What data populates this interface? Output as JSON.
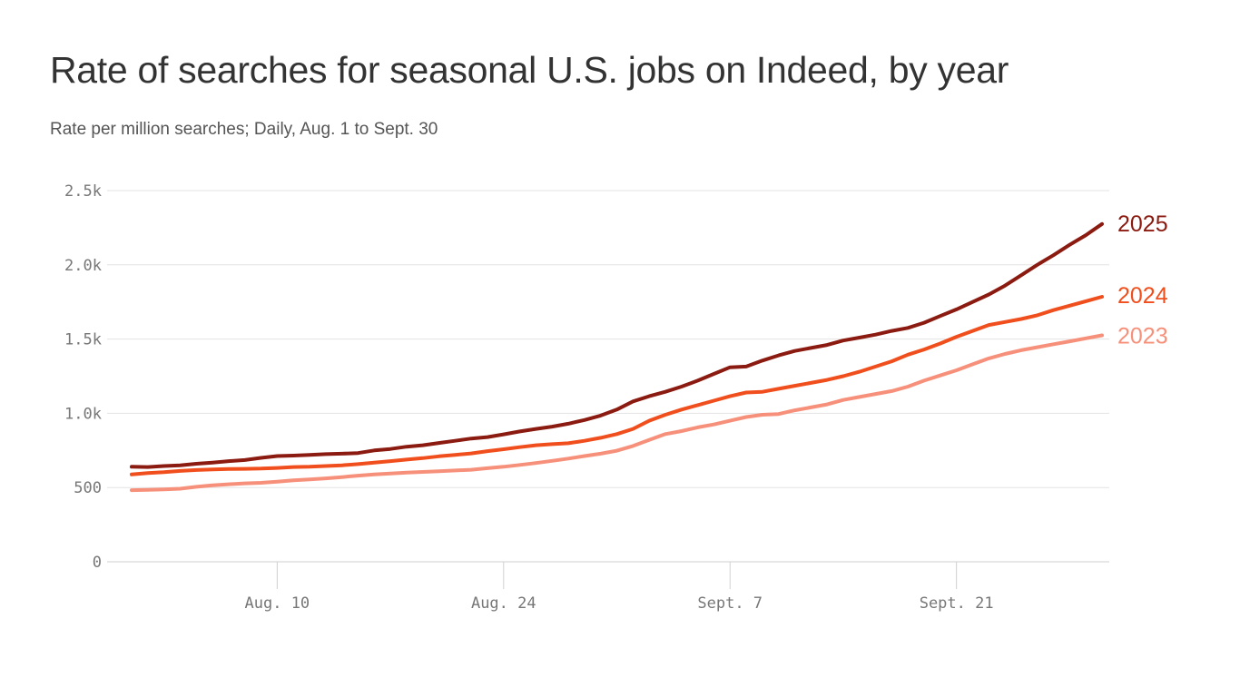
{
  "title": "Rate of searches for seasonal U.S. jobs on Indeed, by year",
  "subtitle": "Rate per million searches; Daily, Aug. 1 to Sept. 30",
  "chart_data": {
    "type": "line",
    "title": "Rate of searches for seasonal U.S. jobs on Indeed, by year",
    "subtitle": "Rate per million searches; Daily, Aug. 1 to Sept. 30",
    "xlabel": "",
    "ylabel": "",
    "ylim": [
      0,
      2500
    ],
    "xlim": [
      "2025-08-01",
      "2025-09-30"
    ],
    "grid": true,
    "legend": "direct labels at right end of lines",
    "y_ticks": [
      0,
      500,
      1000,
      1500,
      2000,
      2500
    ],
    "y_tick_labels": [
      "0",
      "500",
      "1.0k",
      "1.5k",
      "2.0k",
      "2.5k"
    ],
    "x_ticks": [
      "2025-08-10",
      "2025-08-24",
      "2025-09-07",
      "2025-09-21"
    ],
    "x_tick_labels": [
      "Aug. 10",
      "Aug. 24",
      "Sept. 7",
      "Sept. 21"
    ],
    "x": [
      "Aug 1",
      "Aug 2",
      "Aug 3",
      "Aug 4",
      "Aug 5",
      "Aug 6",
      "Aug 7",
      "Aug 8",
      "Aug 9",
      "Aug 10",
      "Aug 11",
      "Aug 12",
      "Aug 13",
      "Aug 14",
      "Aug 15",
      "Aug 16",
      "Aug 17",
      "Aug 18",
      "Aug 19",
      "Aug 20",
      "Aug 21",
      "Aug 22",
      "Aug 23",
      "Aug 24",
      "Aug 25",
      "Aug 26",
      "Aug 27",
      "Aug 28",
      "Aug 29",
      "Aug 30",
      "Aug 31",
      "Sep 1",
      "Sep 2",
      "Sep 3",
      "Sep 4",
      "Sep 5",
      "Sep 6",
      "Sep 7",
      "Sep 8",
      "Sep 9",
      "Sep 10",
      "Sep 11",
      "Sep 12",
      "Sep 13",
      "Sep 14",
      "Sep 15",
      "Sep 16",
      "Sep 17",
      "Sep 18",
      "Sep 19",
      "Sep 20",
      "Sep 21",
      "Sep 22",
      "Sep 23",
      "Sep 24",
      "Sep 25",
      "Sep 26",
      "Sep 27",
      "Sep 28",
      "Sep 29",
      "Sep 30"
    ],
    "series": [
      {
        "name": "2025",
        "color": "#8b1a10",
        "values": [
          640,
          638,
          645,
          650,
          660,
          668,
          678,
          685,
          700,
          712,
          715,
          720,
          725,
          728,
          732,
          750,
          760,
          775,
          785,
          800,
          815,
          830,
          840,
          858,
          878,
          895,
          910,
          930,
          955,
          985,
          1025,
          1080,
          1115,
          1145,
          1180,
          1220,
          1265,
          1310,
          1315,
          1355,
          1390,
          1420,
          1440,
          1460,
          1490,
          1510,
          1530,
          1555,
          1575,
          1610,
          1655,
          1700,
          1750,
          1800,
          1860,
          1930,
          2000,
          2065,
          2135,
          2200,
          2275
        ]
      },
      {
        "name": "2024",
        "color": "#f04e1c",
        "values": [
          588,
          598,
          603,
          612,
          618,
          622,
          625,
          626,
          628,
          632,
          638,
          640,
          645,
          650,
          658,
          668,
          678,
          688,
          698,
          710,
          720,
          730,
          745,
          758,
          772,
          785,
          792,
          798,
          815,
          835,
          860,
          895,
          950,
          990,
          1025,
          1055,
          1085,
          1115,
          1140,
          1145,
          1165,
          1185,
          1205,
          1225,
          1250,
          1280,
          1315,
          1350,
          1395,
          1430,
          1470,
          1515,
          1555,
          1595,
          1615,
          1635,
          1660,
          1695,
          1725,
          1755,
          1785
        ]
      },
      {
        "name": "2023",
        "color": "#f7907a",
        "values": [
          482,
          485,
          488,
          492,
          505,
          515,
          522,
          528,
          532,
          540,
          548,
          555,
          562,
          570,
          580,
          588,
          595,
          600,
          605,
          610,
          615,
          620,
          630,
          640,
          652,
          665,
          680,
          695,
          712,
          728,
          748,
          780,
          820,
          860,
          880,
          905,
          925,
          950,
          975,
          990,
          995,
          1020,
          1040,
          1060,
          1090,
          1110,
          1130,
          1150,
          1180,
          1220,
          1255,
          1290,
          1330,
          1370,
          1400,
          1425,
          1445,
          1465,
          1485,
          1505,
          1525
        ]
      }
    ]
  }
}
